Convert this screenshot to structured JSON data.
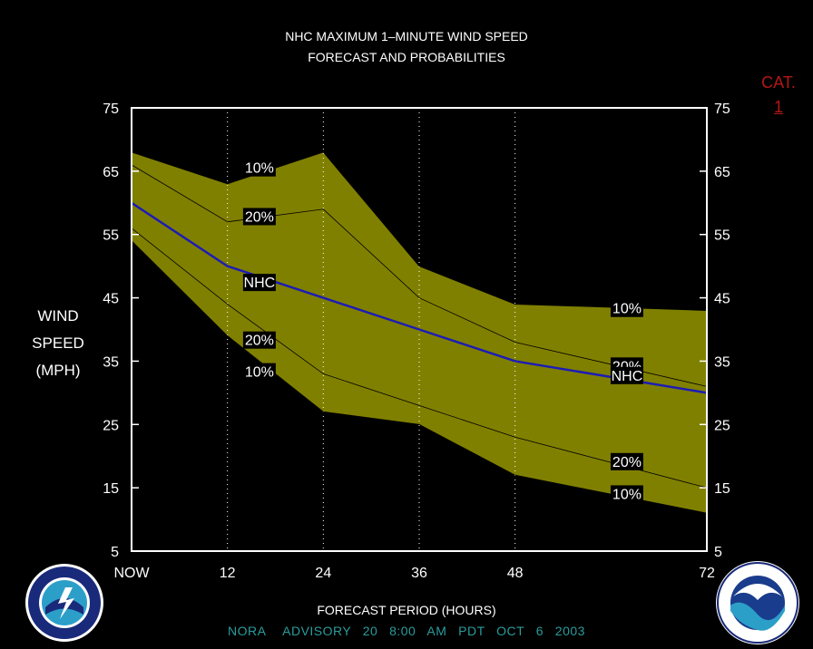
{
  "header": {
    "title_line1": "NHC MAXIMUM 1–MINUTE WIND SPEED",
    "title_line2": "FORECAST AND PROBABILITIES"
  },
  "category": {
    "label": "CAT.",
    "value": "1"
  },
  "ylabel": {
    "line1": "WIND",
    "line2": "SPEED",
    "line3": "(MPH)"
  },
  "footer": {
    "advisory": "NORA   ADVISORY  20  8:00  AM  PDT  OCT  6  2003"
  },
  "logos": {
    "left": "nws-logo",
    "right": "noaa-logo"
  },
  "chart_data": {
    "type": "area",
    "x": [
      0,
      12,
      24,
      36,
      48,
      72
    ],
    "x_tick_labels": [
      "NOW",
      "12",
      "24",
      "36",
      "48",
      "72"
    ],
    "xlabel": "FORECAST PERIOD (HOURS)",
    "ylabel": "WIND SPEED (MPH)",
    "xlim": [
      0,
      72
    ],
    "ylim": [
      5,
      75
    ],
    "y_ticks": [
      5,
      15,
      25,
      35,
      45,
      55,
      65,
      75
    ],
    "grid": "vertical dotted at 12, 24, 36, 48",
    "band_color": "#808000",
    "nhc_color": "#1c1cb4",
    "series": [
      {
        "name": "10%",
        "values": [
          68,
          63,
          68,
          50,
          44,
          43
        ],
        "role": "upper"
      },
      {
        "name": "20%",
        "values": [
          66,
          57,
          59,
          45,
          38,
          31
        ],
        "role": "upper"
      },
      {
        "name": "NHC",
        "values": [
          60,
          50,
          45,
          40,
          35,
          30
        ],
        "role": "forecast"
      },
      {
        "name": "20%",
        "values": [
          56,
          44,
          33,
          28,
          23,
          15
        ],
        "role": "lower"
      },
      {
        "name": "10%",
        "values": [
          54,
          39,
          27,
          25,
          17,
          11
        ],
        "role": "lower"
      }
    ],
    "band_labels": [
      {
        "text": "10%",
        "x": 16,
        "y": 65.6
      },
      {
        "text": "20%",
        "x": 16,
        "y": 57.9
      },
      {
        "text": "NHC",
        "x": 16,
        "y": 47.5
      },
      {
        "text": "20%",
        "x": 16,
        "y": 38.4
      },
      {
        "text": "10%",
        "x": 16,
        "y": 33.4
      },
      {
        "text": "10%",
        "x": 62,
        "y": 43.4
      },
      {
        "text": "20%",
        "x": 62,
        "y": 34.3
      },
      {
        "text": "NHC",
        "x": 62,
        "y": 32.8
      },
      {
        "text": "20%",
        "x": 62,
        "y": 19.2
      },
      {
        "text": "10%",
        "x": 62,
        "y": 14.1
      }
    ]
  }
}
